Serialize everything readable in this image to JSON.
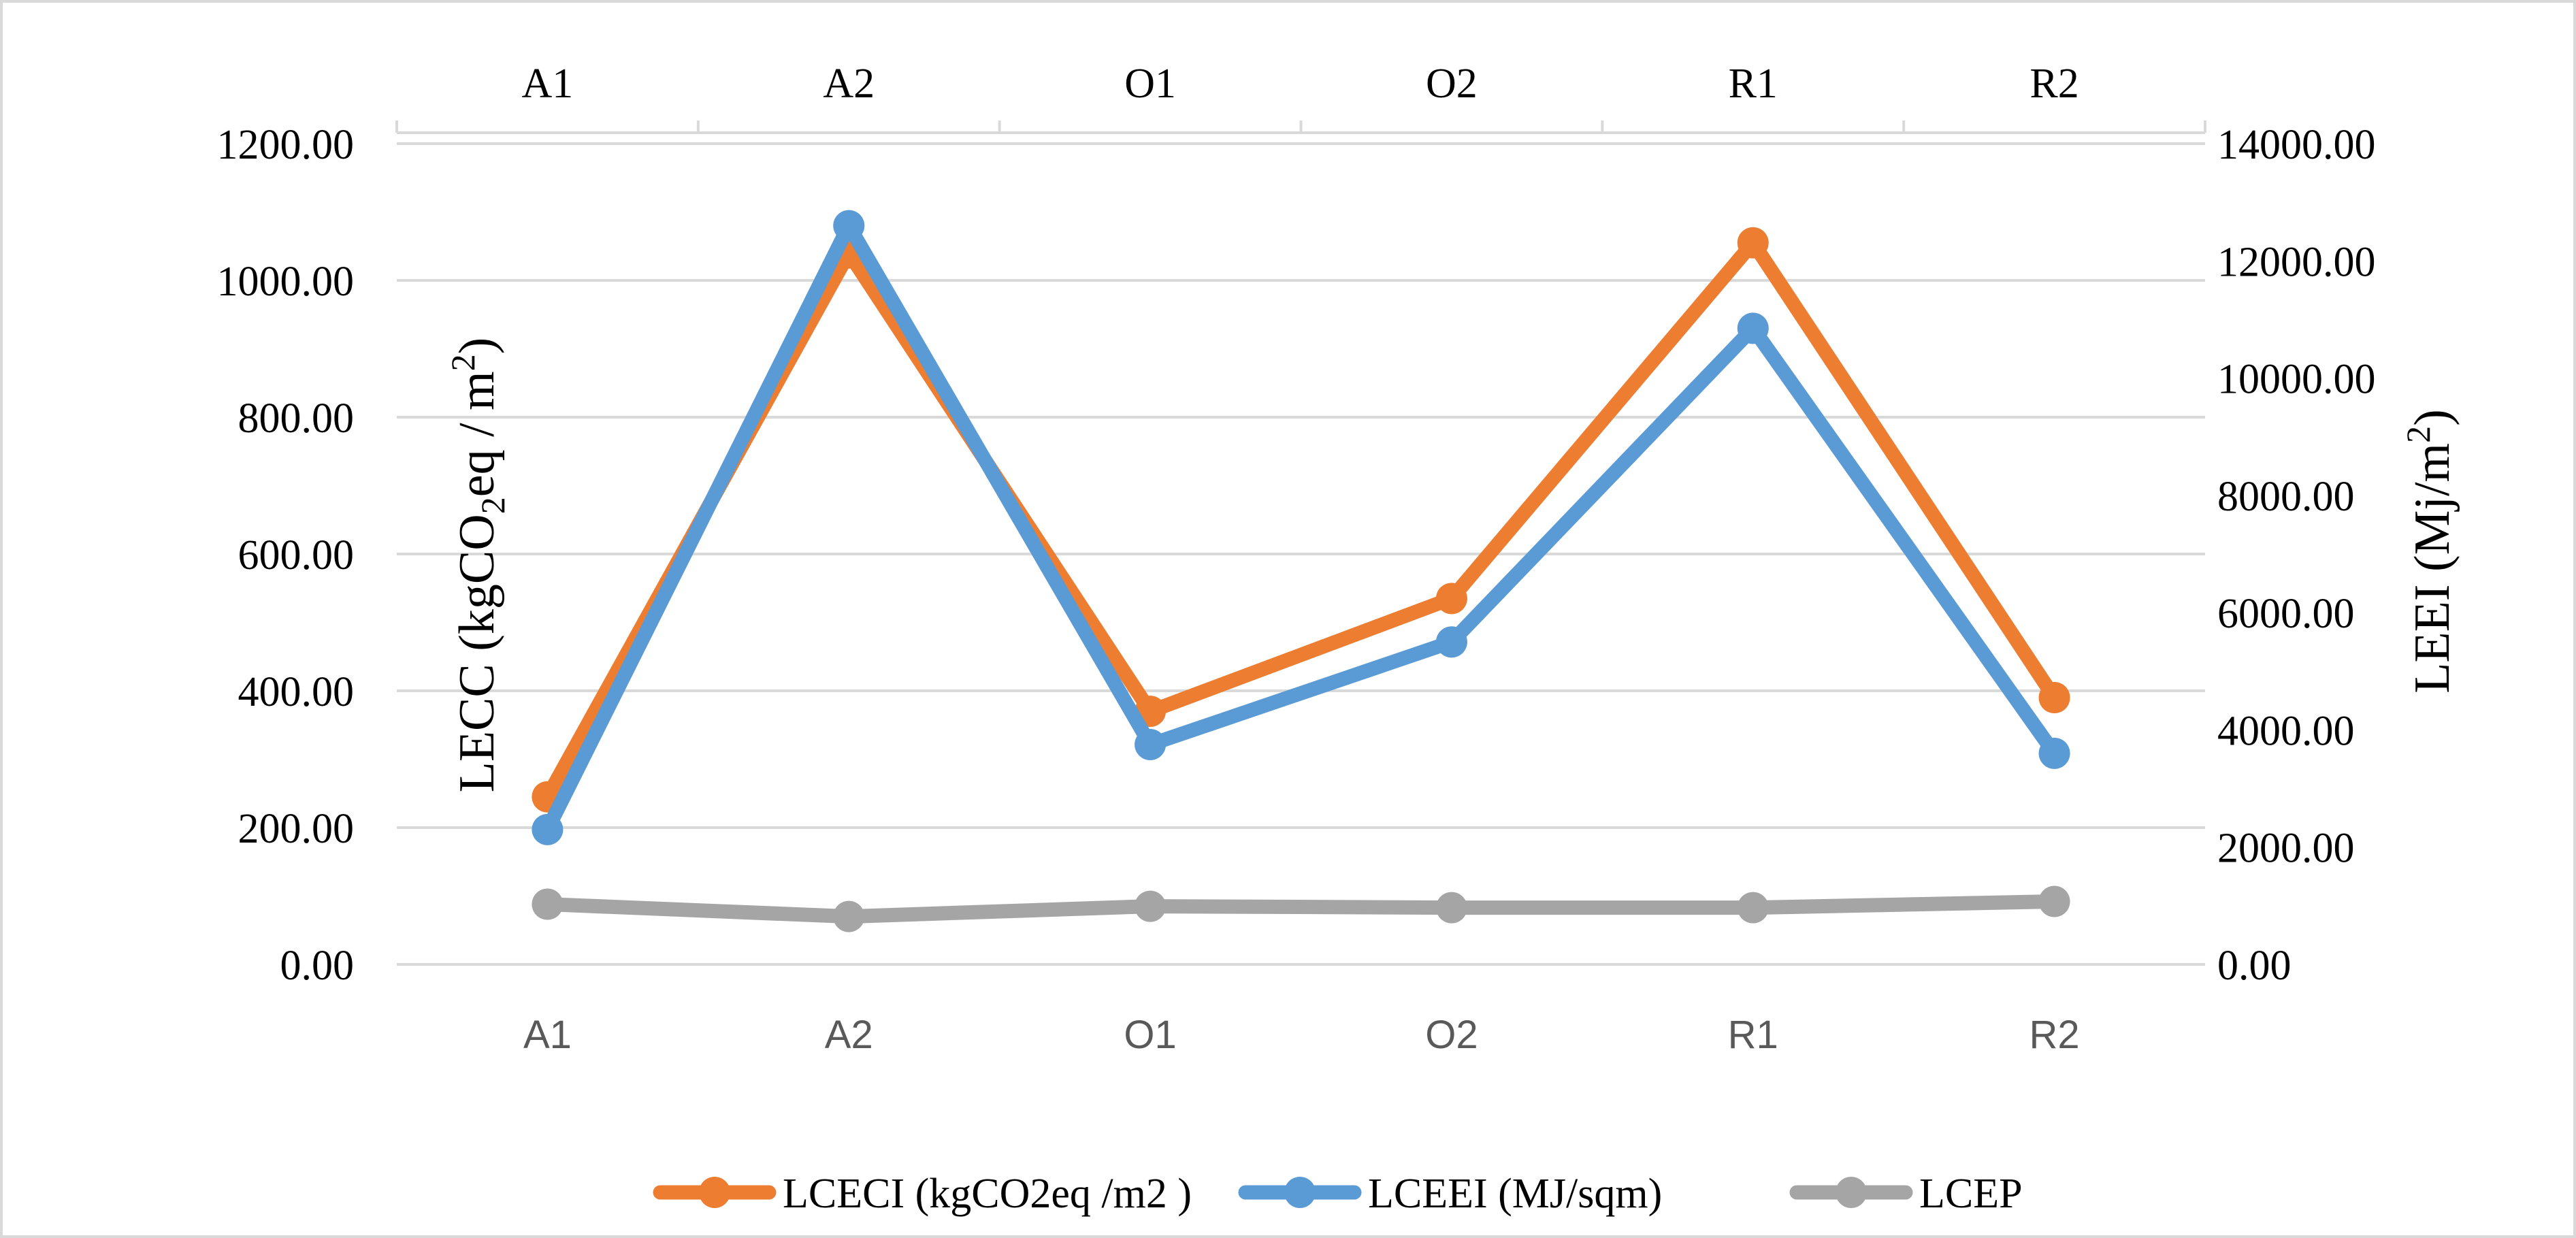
{
  "chart_data": {
    "type": "line",
    "categories": [
      "A1",
      "A2",
      "O1",
      "O2",
      "R1",
      "R2"
    ],
    "top_categories": [
      "A1",
      "A2",
      "O1",
      "O2",
      "R1",
      "R2"
    ],
    "y_left": {
      "label": "LECC (kgCO2eq / m2)",
      "label_main": "LECC (kgCO",
      "label_sub": "2",
      "label_mid": "eq / m",
      "label_sup": "2",
      "label_end": ")",
      "min": 0,
      "max": 1200,
      "step": 200,
      "tick_labels": [
        "0.00",
        "200.00",
        "400.00",
        "600.00",
        "800.00",
        "1000.00",
        "1200.00"
      ]
    },
    "y_right": {
      "label": "LEEI (Mj/m2)",
      "label_main": "LEEI (Mj/m",
      "label_sup": "2",
      "label_end": ")",
      "min": 0,
      "max": 14000,
      "step": 2000,
      "tick_labels": [
        "0.00",
        "2000.00",
        "4000.00",
        "6000.00",
        "8000.00",
        "10000.00",
        "12000.00",
        "14000.00"
      ]
    },
    "series": [
      {
        "name": "LCECI (kgCO2eq /m2 )",
        "axis": "left",
        "color": "#ed7d31",
        "values": [
          245,
          1040,
          370,
          535,
          1055,
          390
        ]
      },
      {
        "name": "LCEEI (MJ/sqm)",
        "axis": "right",
        "color": "#5b9bd5",
        "values": [
          2300,
          12600,
          3750,
          5500,
          10850,
          3600
        ]
      },
      {
        "name": "LCEP",
        "axis": "left",
        "color": "#a5a5a5",
        "values": [
          88,
          70,
          85,
          83,
          83,
          92
        ]
      }
    ],
    "gridlines": true,
    "legend_position": "bottom"
  }
}
